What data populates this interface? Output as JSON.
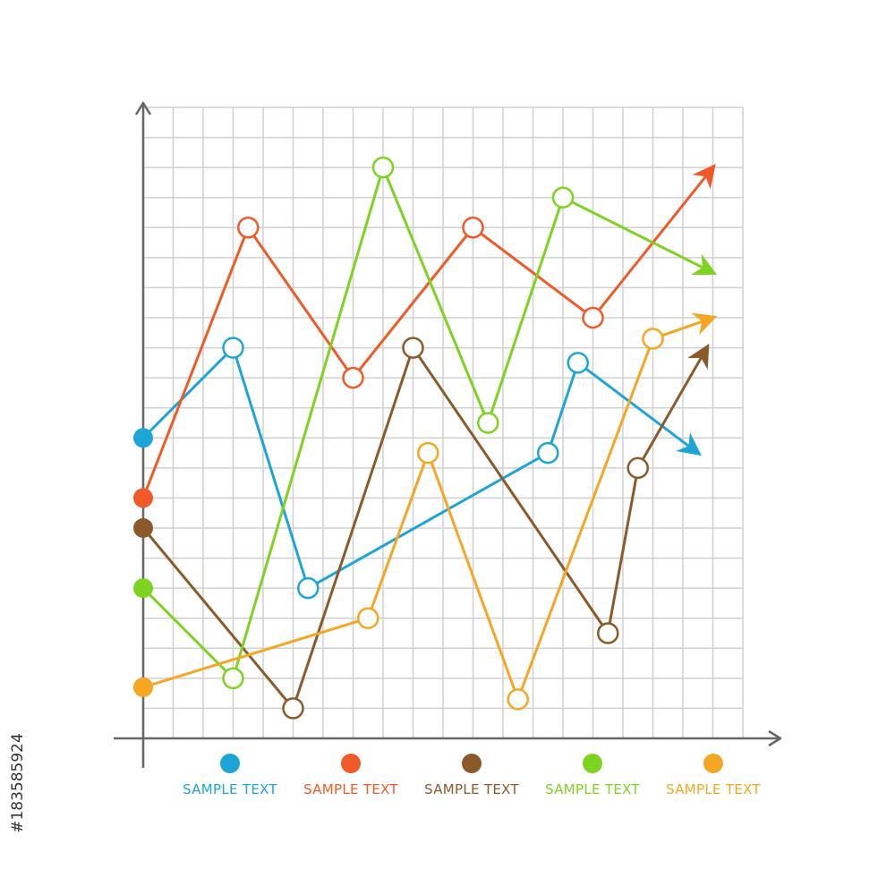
{
  "watermark": {
    "text": "#183585924"
  },
  "chart_data": {
    "type": "line",
    "title": "",
    "xlabel": "",
    "ylabel": "",
    "xlim": [
      0,
      20
    ],
    "ylim": [
      0,
      21
    ],
    "grid": true,
    "legend_position": "bottom",
    "axis_color": "#666666",
    "grid_color": "#d0d0d0",
    "series": [
      {
        "name": "SAMPLE TEXT",
        "color": "#1ea5d8",
        "points": [
          [
            0,
            10
          ],
          [
            3,
            13
          ],
          [
            5.5,
            5
          ],
          [
            13.5,
            9.5
          ],
          [
            14.5,
            12.5
          ],
          [
            18.5,
            9.5
          ]
        ]
      },
      {
        "name": "SAMPLE TEXT",
        "color": "#f05a28",
        "points": [
          [
            0,
            8
          ],
          [
            3.5,
            17
          ],
          [
            7,
            12
          ],
          [
            11,
            17
          ],
          [
            15,
            14
          ],
          [
            19,
            19
          ]
        ]
      },
      {
        "name": "SAMPLE TEXT",
        "color": "#8b5a2b",
        "points": [
          [
            0,
            7
          ],
          [
            5,
            1
          ],
          [
            9,
            13
          ],
          [
            15.5,
            3.5
          ],
          [
            16.5,
            9
          ],
          [
            18.8,
            13
          ]
        ]
      },
      {
        "name": "SAMPLE TEXT",
        "color": "#7ed321",
        "points": [
          [
            0,
            5
          ],
          [
            3,
            2
          ],
          [
            8,
            19
          ],
          [
            11.5,
            10.5
          ],
          [
            14,
            18
          ],
          [
            19,
            15.5
          ]
        ]
      },
      {
        "name": "SAMPLE TEXT",
        "color": "#f5a623",
        "points": [
          [
            0,
            1.7
          ],
          [
            7.5,
            4
          ],
          [
            9.5,
            9.5
          ],
          [
            12.5,
            1.3
          ],
          [
            17,
            13.3
          ],
          [
            19,
            14
          ]
        ]
      }
    ]
  }
}
